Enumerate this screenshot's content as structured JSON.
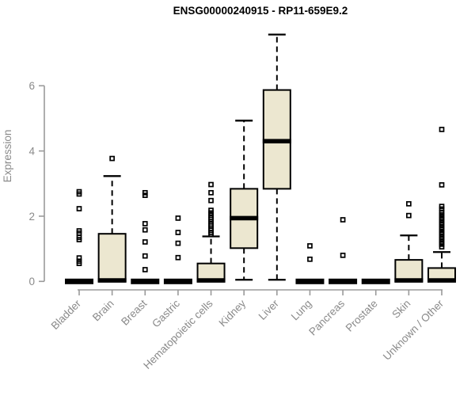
{
  "title": "ENSG00000240915 - RP11-659E9.2",
  "colors": {
    "background": "#ffffff",
    "box_fill": "#ece7d0",
    "box_stroke": "#000000",
    "median": "#000000",
    "whisker": "#000000",
    "outlier": "#000000",
    "axis_line": "#9a9a9a",
    "tick_label": "#8a8a8a",
    "axis_title": "#8a8a8a",
    "title_color": "#000000"
  },
  "chart_data": {
    "type": "boxplot",
    "title": "ENSG00000240915 - RP11-659E9.2",
    "xlabel": "",
    "ylabel": "Expression",
    "yticks": [
      0,
      2,
      4,
      6
    ],
    "ylim_drawn_axis": [
      0,
      6
    ],
    "ylim_plot_area": [
      0,
      7.65
    ],
    "grid": false,
    "legend": "none",
    "categories": [
      "Bladder",
      "Brain",
      "Breast",
      "Gastric",
      "Hematopoietic cells",
      "Kidney",
      "Liver",
      "Lung",
      "Pancreas",
      "Prostate",
      "Skin",
      "Unknown / Other"
    ],
    "boxes": [
      {
        "name": "Bladder",
        "q1": 0,
        "median": 0,
        "q3": 0,
        "whisker_low": 0,
        "whisker_high": 0,
        "outliers": [
          2.75,
          2.68,
          2.23,
          1.55,
          1.48,
          1.35,
          1.28,
          0.72,
          0.62,
          0.55
        ]
      },
      {
        "name": "Brain",
        "q1": 0,
        "median": 0.03,
        "q3": 1.46,
        "whisker_low": 0,
        "whisker_high": 3.23,
        "outliers": [
          3.77
        ]
      },
      {
        "name": "Breast",
        "q1": 0,
        "median": 0,
        "q3": 0,
        "whisker_low": 0,
        "whisker_high": 0,
        "outliers": [
          2.72,
          2.64,
          1.77,
          1.58,
          1.21,
          0.78,
          0.36
        ]
      },
      {
        "name": "Gastric",
        "q1": 0,
        "median": 0,
        "q3": 0,
        "whisker_low": 0,
        "whisker_high": 0,
        "outliers": [
          1.94,
          1.5,
          1.17,
          0.73
        ]
      },
      {
        "name": "Hematopoietic cells",
        "q1": 0,
        "median": 0.03,
        "q3": 0.55,
        "whisker_low": 0,
        "whisker_high": 1.38,
        "outliers": [
          2.97,
          2.72,
          2.48,
          2.18,
          2.1,
          2.03,
          1.96,
          1.9,
          1.83,
          1.76,
          1.7,
          1.63,
          1.57,
          1.5,
          1.44
        ]
      },
      {
        "name": "Kidney",
        "q1": 1.02,
        "median": 1.94,
        "q3": 2.84,
        "whisker_low": 0.05,
        "whisker_high": 4.93,
        "outliers": []
      },
      {
        "name": "Liver",
        "q1": 2.84,
        "median": 4.3,
        "q3": 5.87,
        "whisker_low": 0.05,
        "whisker_high": 7.57,
        "outliers": []
      },
      {
        "name": "Lung",
        "q1": 0,
        "median": 0,
        "q3": 0,
        "whisker_low": 0,
        "whisker_high": 0,
        "outliers": [
          1.09,
          0.68
        ]
      },
      {
        "name": "Pancreas",
        "q1": 0,
        "median": 0,
        "q3": 0,
        "whisker_low": 0,
        "whisker_high": 0,
        "outliers": [
          1.89,
          0.8
        ]
      },
      {
        "name": "Prostate",
        "q1": 0,
        "median": 0,
        "q3": 0,
        "whisker_low": 0,
        "whisker_high": 0,
        "outliers": []
      },
      {
        "name": "Skin",
        "q1": 0,
        "median": 0.03,
        "q3": 0.66,
        "whisker_low": 0,
        "whisker_high": 1.41,
        "outliers": [
          2.38,
          2.02
        ]
      },
      {
        "name": "Unknown / Other",
        "q1": 0,
        "median": 0.03,
        "q3": 0.41,
        "whisker_low": 0,
        "whisker_high": 0.9,
        "outliers": [
          4.66,
          2.96,
          2.3,
          2.22,
          2.12,
          2.04,
          1.96,
          1.89,
          1.81,
          1.74,
          1.66,
          1.59,
          1.51,
          1.44,
          1.36,
          1.29,
          1.21,
          1.14,
          1.06
        ]
      }
    ]
  }
}
